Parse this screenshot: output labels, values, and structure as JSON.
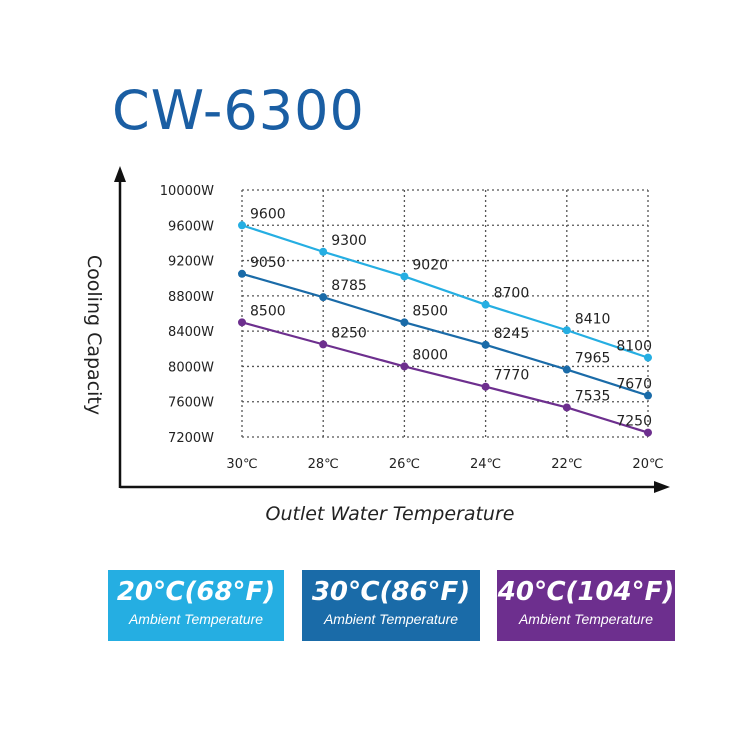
{
  "chart_data": {
    "type": "line",
    "title": "CW-6300",
    "xlabel": "Outlet Water Temperature",
    "ylabel": "Cooling Capacity",
    "x": [
      "30℃",
      "28℃",
      "26℃",
      "24℃",
      "22℃",
      "20℃"
    ],
    "yticks": [
      "10000W",
      "9600W",
      "9200W",
      "8800W",
      "8400W",
      "8000W",
      "7600W",
      "7200W"
    ],
    "ylim": [
      7200,
      10000
    ],
    "grid": true,
    "series": [
      {
        "name": "20℃(68°F)",
        "sub": "Ambient Temperature",
        "color": "#25aee2",
        "values": [
          9600,
          9300,
          9020,
          8700,
          8410,
          8100
        ],
        "labels": [
          "9600",
          "9300",
          "9020",
          "8700",
          "8410",
          "8100"
        ]
      },
      {
        "name": "30℃(86°F)",
        "sub": "Ambient Temperature",
        "color": "#1a6ba8",
        "values": [
          9050,
          8785,
          8500,
          8245,
          7965,
          7670
        ],
        "labels": [
          "9050",
          "8785",
          "8500",
          "8245",
          "7965",
          "7670"
        ]
      },
      {
        "name": "40℃(104°F)",
        "sub": "Ambient Temperature",
        "color": "#6d2f8e",
        "values": [
          8500,
          8250,
          8000,
          7770,
          7535,
          7250
        ],
        "labels": [
          "8500",
          "8250",
          "8000",
          "7770",
          "7535",
          "7250"
        ]
      }
    ]
  }
}
